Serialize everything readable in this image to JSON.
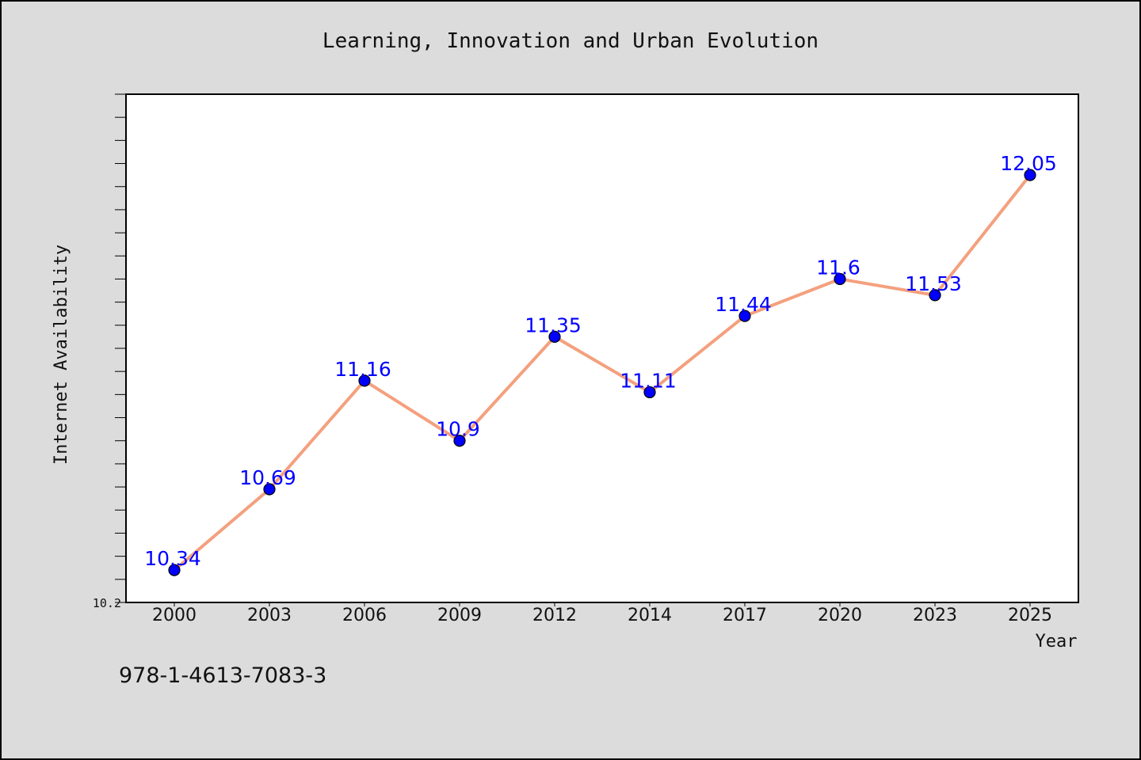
{
  "chart_data": {
    "type": "line",
    "title": "Learning, Innovation and Urban Evolution",
    "xlabel": "Year",
    "ylabel": "Internet Availability",
    "categories": [
      "2000",
      "2003",
      "2006",
      "2009",
      "2012",
      "2014",
      "2017",
      "2020",
      "2023",
      "2025"
    ],
    "series": [
      {
        "values": [
          10.34,
          10.69,
          11.16,
          10.9,
          11.35,
          11.11,
          11.44,
          11.6,
          11.53,
          12.05
        ],
        "labels": [
          "10.34",
          "10.69",
          "11.16",
          "10.9",
          "11.35",
          "11.11",
          "11.44",
          "11.6",
          "11.53",
          "12.05"
        ],
        "line_color": "#f4a07e",
        "marker_color": "#0000ff"
      }
    ],
    "ylim": [
      10.2,
      12.4
    ],
    "yticks_labeled": [
      {
        "value": 10.2,
        "label": "10.2"
      }
    ],
    "minor_tick_step": 0.1,
    "grid": false,
    "legend": "none",
    "label_color": "#0000ff"
  },
  "footer": {
    "isbn": "978-1-4613-7083-3"
  },
  "colors": {
    "background": "#dcdcdc",
    "plot_background": "#ffffff"
  }
}
